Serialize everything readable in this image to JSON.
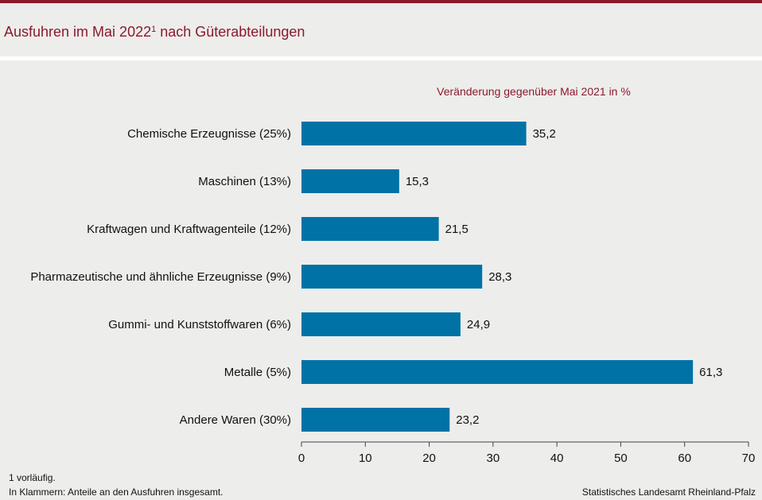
{
  "header": {
    "title": "Ausfuhren im Mai 2022",
    "title_superscript": "1",
    "title_suffix": " nach Güterabteilungen"
  },
  "footer": {
    "note_1": "1 vorläufig.",
    "note_2": "In Klammern: Anteile an den Ausfuhren insgesamt.",
    "source": "Statistisches Landesamt Rheinland-Pfalz"
  },
  "colors": {
    "bar": "#0072a6",
    "accent": "#8b1a2b",
    "background": "#ededec"
  },
  "chart_data": {
    "type": "bar",
    "orientation": "horizontal",
    "subtitle": "Veränderung  gegenüber Mai 2021 in %",
    "categories": [
      "Chemische Erzeugnisse (25%)",
      "Maschinen (13%)",
      "Kraftwagen und Kraftwagenteile (12%)",
      "Pharmazeutische und ähnliche Erzeugnisse (9%)",
      "Gummi- und Kunststoffwaren (6%)",
      "Metalle (5%)",
      "Andere Waren (30%)"
    ],
    "values": [
      35.2,
      15.3,
      21.5,
      28.3,
      24.9,
      61.3,
      23.2
    ],
    "value_labels": [
      "35,2",
      "15,3",
      "21,5",
      "28,3",
      "24,9",
      "61,3",
      "23,2"
    ],
    "xlim": [
      0,
      70
    ],
    "xticks": [
      0,
      10,
      20,
      30,
      40,
      50,
      60,
      70
    ],
    "xlabel": "",
    "ylabel": "",
    "grid": false
  }
}
